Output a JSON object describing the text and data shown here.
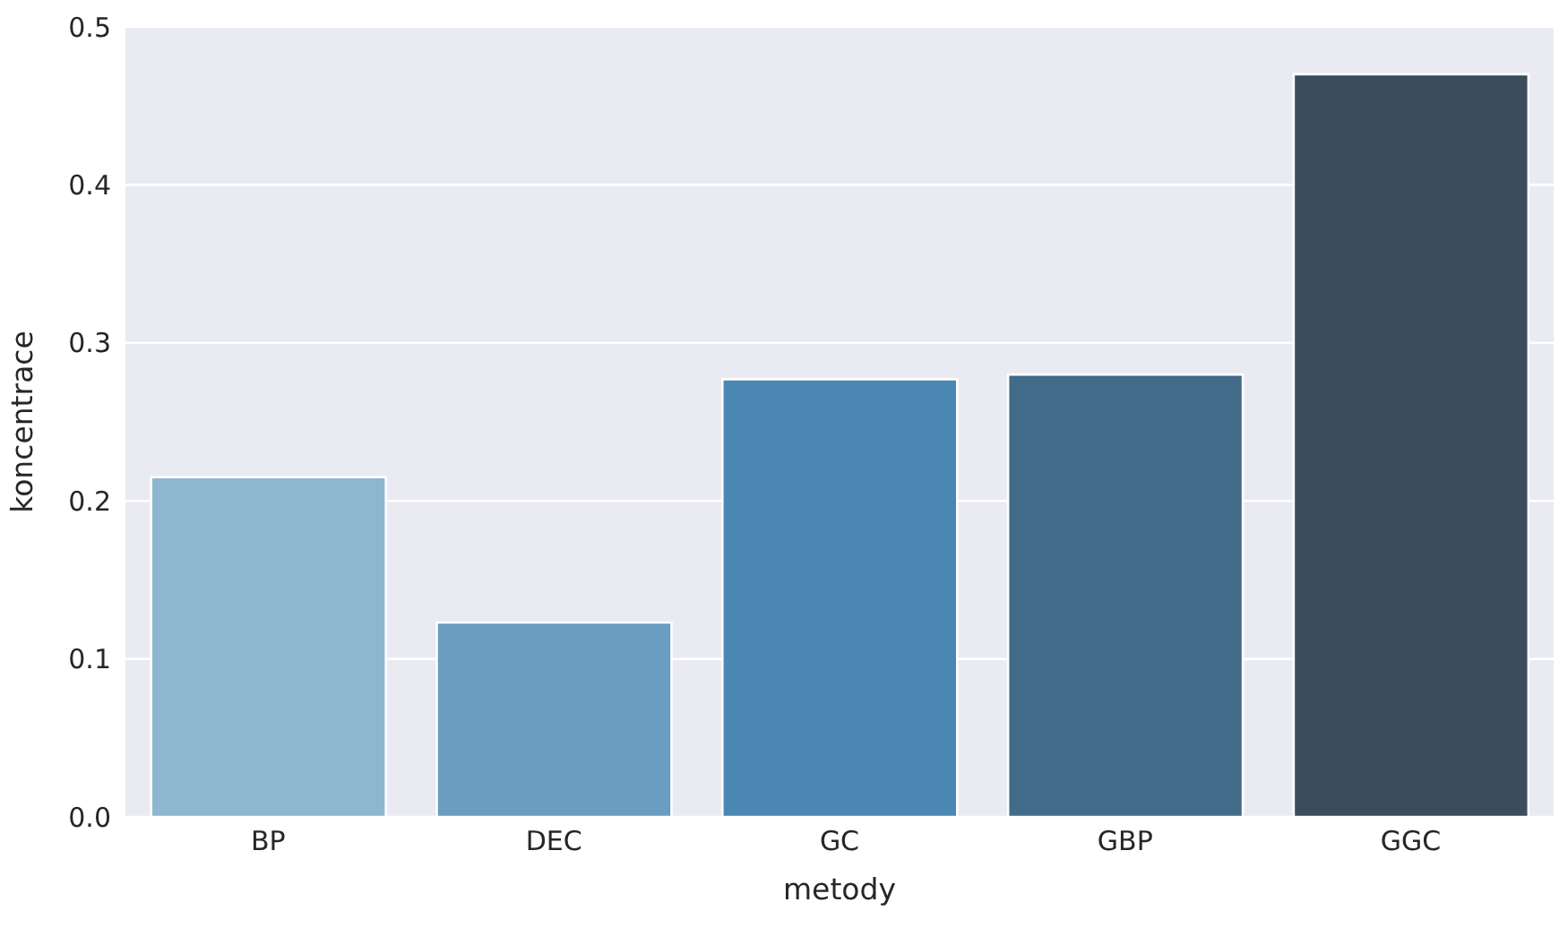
{
  "chart_data": {
    "type": "bar",
    "xlabel": "metody",
    "ylabel": "koncentrace",
    "categories": [
      "BP",
      "DEC",
      "GC",
      "GBP",
      "GGC"
    ],
    "values": [
      0.215,
      0.123,
      0.277,
      0.28,
      0.47
    ],
    "colors": [
      "#8fb6d0",
      "#6a9dc0",
      "#4a87b4",
      "#426b8a",
      "#3a4d5c"
    ],
    "ylim": [
      0,
      0.5
    ],
    "yticks": [
      {
        "value": 0,
        "label": "0.0"
      },
      0.1,
      0.2,
      0.3,
      0.4,
      0.5
    ],
    "grid": "y"
  }
}
